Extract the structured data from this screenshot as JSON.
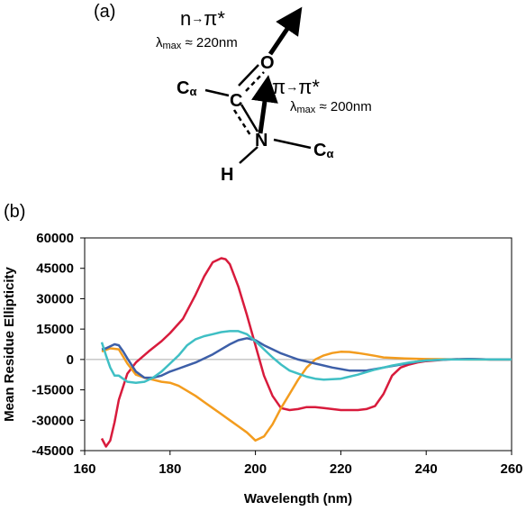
{
  "panel_a": {
    "label": "(a)",
    "n_pi_transition": {
      "left": "n",
      "right": "π*"
    },
    "lambda_n": {
      "sym": "λ",
      "sub": "max",
      "value": " ≈ 220nm"
    },
    "pi_pi_transition": {
      "left": "π",
      "right": "π*"
    },
    "lambda_pi": {
      "sym": "λ",
      "sub": "max",
      "value": " ≈ 200nm"
    },
    "atoms": {
      "o": "O",
      "c": "C",
      "n": "N",
      "h": "H",
      "ca": "C",
      "ca_sub": "α"
    }
  },
  "panel_b": {
    "label": "(b)"
  },
  "chart_data": {
    "type": "line",
    "title": "",
    "xlabel": "Wavelength (nm)",
    "ylabel": "Mean Residue Ellipticity",
    "xlim": [
      160,
      260
    ],
    "ylim": [
      -45000,
      60000
    ],
    "x_ticks": [
      160,
      180,
      200,
      220,
      240,
      260
    ],
    "y_ticks": [
      60000,
      45000,
      30000,
      15000,
      0,
      -15000,
      -30000,
      -45000
    ],
    "grid": false,
    "zero_line": true,
    "legend": "none",
    "series": [
      {
        "color": "#d81b3c",
        "x": [
          164,
          165,
          166,
          167,
          168,
          170,
          172,
          175,
          178,
          180,
          183,
          186,
          188,
          190,
          192,
          193,
          194,
          196,
          198,
          200,
          202,
          204,
          206,
          208,
          210,
          212,
          214,
          216,
          220,
          224,
          226,
          228,
          230,
          232,
          234,
          236,
          238,
          240,
          245,
          250,
          255,
          260
        ],
        "y": [
          -39000,
          -43000,
          -40000,
          -31000,
          -20000,
          -7000,
          -1500,
          4000,
          9000,
          13000,
          20000,
          32000,
          41000,
          48000,
          50000,
          49500,
          47000,
          36000,
          22000,
          7000,
          -8000,
          -18000,
          -24000,
          -25000,
          -24500,
          -23500,
          -23500,
          -24000,
          -25000,
          -25000,
          -24500,
          -23000,
          -17000,
          -8000,
          -4000,
          -2500,
          -1500,
          -800,
          0,
          300,
          0,
          0
        ]
      },
      {
        "color": "#f39c1e",
        "x": [
          164,
          166,
          168,
          170,
          172,
          174,
          176,
          178,
          180,
          182,
          184,
          186,
          188,
          190,
          192,
          194,
          196,
          198,
          199,
          200,
          202,
          204,
          206,
          208,
          210,
          212,
          214,
          216,
          218,
          220,
          222,
          224,
          226,
          228,
          230,
          235,
          240,
          245,
          250,
          255,
          260
        ],
        "y": [
          4000,
          5500,
          5000,
          -2000,
          -7500,
          -9000,
          -10000,
          -11000,
          -11500,
          -13000,
          -15500,
          -18000,
          -21000,
          -24000,
          -27000,
          -30000,
          -33000,
          -36000,
          -38000,
          -40000,
          -38000,
          -32000,
          -24000,
          -17000,
          -10000,
          -4000,
          0,
          2000,
          3200,
          3800,
          3700,
          3200,
          2500,
          1800,
          1000,
          500,
          200,
          100,
          0,
          0,
          0
        ]
      },
      {
        "color": "#3d5fa8",
        "x": [
          164,
          165,
          166,
          167,
          168,
          169,
          170,
          172,
          174,
          176,
          178,
          180,
          182,
          184,
          186,
          188,
          190,
          192,
          194,
          196,
          198,
          200,
          202,
          204,
          206,
          208,
          210,
          214,
          218,
          222,
          226,
          230,
          234,
          238,
          240,
          245,
          250,
          255,
          260
        ],
        "y": [
          5000,
          5500,
          6500,
          7500,
          7000,
          4000,
          500,
          -6000,
          -9000,
          -9000,
          -8000,
          -6000,
          -4500,
          -3000,
          -1500,
          500,
          2500,
          5000,
          7500,
          9500,
          10500,
          9500,
          7000,
          5000,
          3000,
          1500,
          0,
          -2000,
          -4000,
          -5500,
          -5500,
          -4000,
          -2500,
          -1000,
          -500,
          0,
          300,
          0,
          0
        ]
      },
      {
        "color": "#3fbfc4",
        "x": [
          164,
          165,
          166,
          167,
          168,
          170,
          172,
          174,
          176,
          178,
          180,
          182,
          184,
          186,
          188,
          190,
          192,
          194,
          196,
          198,
          200,
          202,
          204,
          206,
          208,
          210,
          212,
          214,
          216,
          220,
          224,
          228,
          232,
          236,
          240,
          245,
          250,
          255,
          260
        ],
        "y": [
          8500,
          2000,
          -4000,
          -8000,
          -8000,
          -11000,
          -11500,
          -11000,
          -9000,
          -6000,
          -2000,
          2000,
          7000,
          10000,
          11500,
          12500,
          13500,
          14000,
          14000,
          12500,
          9000,
          5000,
          1000,
          -2500,
          -5500,
          -7000,
          -8500,
          -9500,
          -10000,
          -9500,
          -7500,
          -5000,
          -3000,
          -1500,
          -500,
          0,
          0,
          0,
          0
        ]
      }
    ]
  }
}
